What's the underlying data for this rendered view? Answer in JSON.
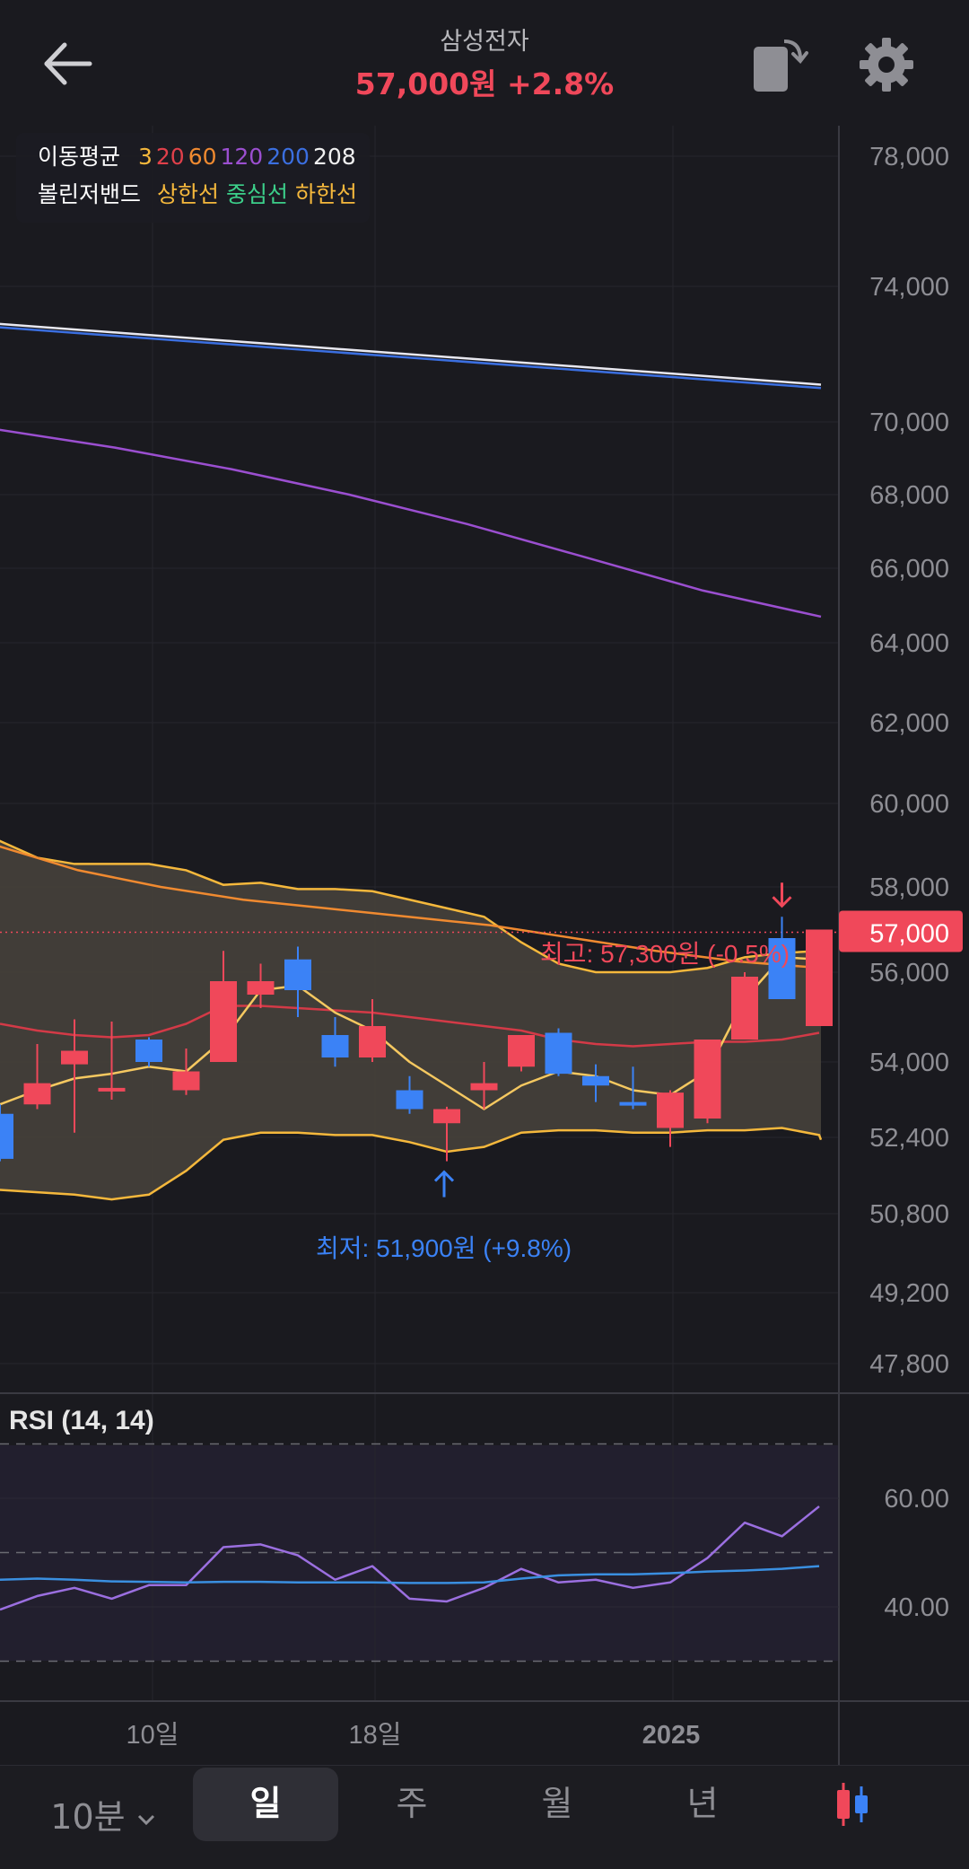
{
  "header": {
    "stock_name": "삼성전자",
    "price": "57,000원",
    "change": "+2.8%",
    "price_color": "#f0485a"
  },
  "legend": {
    "ma_label": "이동평균",
    "ma_periods": [
      {
        "label": "3",
        "color": "#f5b83c"
      },
      {
        "label": "20",
        "color": "#e0404a"
      },
      {
        "label": "60",
        "color": "#f08a30"
      },
      {
        "label": "120",
        "color": "#9b4fd0"
      },
      {
        "label": "200",
        "color": "#3b6fe0"
      },
      {
        "label": "208",
        "color": "#f0f0f0"
      }
    ],
    "bb_label": "볼린저밴드",
    "bb_items": [
      {
        "label": "상한선",
        "color": "#f5b83c"
      },
      {
        "label": "중심선",
        "color": "#3ccf8a"
      },
      {
        "label": "하한선",
        "color": "#f5b83c"
      }
    ]
  },
  "annotations": {
    "high": "최고: 57,300원 (-0.5%)",
    "low": "최저: 51,900원 (+9.8%)",
    "current_price_tag": "57,000"
  },
  "rsi": {
    "label": "RSI (14, 14)"
  },
  "bottom_bar": {
    "interval": "10분",
    "tabs": [
      "일",
      "주",
      "월",
      "년"
    ],
    "active_tab": "일"
  },
  "chart_data": [
    {
      "type": "candlestick",
      "up_color": "#f0485a",
      "down_color": "#3b82f6",
      "y_ticks": [
        78000,
        74000,
        70000,
        68000,
        66000,
        64000,
        62000,
        60000,
        58000,
        56000,
        54000,
        52400,
        50800,
        49200,
        47800
      ],
      "y_tick_labels": [
        "78,000",
        "74,000",
        "70,000",
        "68,000",
        "66,000",
        "64,000",
        "62,000",
        "60,000",
        "58,000",
        "56,000",
        "54,000",
        "52,400",
        "50,800",
        "49,200",
        "47,800"
      ],
      "x_tick_labels": [
        "10일",
        "18일",
        "2025"
      ],
      "candles": [
        {
          "o": 52900,
          "c": 51950,
          "h": 53100,
          "l": 51900
        },
        {
          "o": 53100,
          "c": 53550,
          "h": 54400,
          "l": 53000
        },
        {
          "o": 53950,
          "c": 54250,
          "h": 54950,
          "l": 52500
        },
        {
          "o": 53450,
          "c": 53450,
          "h": 54900,
          "l": 53200
        },
        {
          "o": 54500,
          "c": 54000,
          "h": 54550,
          "l": 53900
        },
        {
          "o": 53400,
          "c": 53800,
          "h": 54300,
          "l": 53300
        },
        {
          "o": 54000,
          "c": 55800,
          "h": 56500,
          "l": 54000
        },
        {
          "o": 55500,
          "c": 55800,
          "h": 56200,
          "l": 55200
        },
        {
          "o": 56300,
          "c": 55600,
          "h": 56600,
          "l": 55000
        },
        {
          "o": 54600,
          "c": 54100,
          "h": 55000,
          "l": 53900
        },
        {
          "o": 54100,
          "c": 54800,
          "h": 55400,
          "l": 54000
        },
        {
          "o": 53400,
          "c": 53000,
          "h": 53700,
          "l": 52900
        },
        {
          "o": 52700,
          "c": 53000,
          "h": 53050,
          "l": 51900
        },
        {
          "o": 53400,
          "c": 53550,
          "h": 54000,
          "l": 53000
        },
        {
          "o": 53900,
          "c": 54600,
          "h": 54600,
          "l": 53800
        },
        {
          "o": 54650,
          "c": 53750,
          "h": 54750,
          "l": 53700
        },
        {
          "o": 53700,
          "c": 53500,
          "h": 53950,
          "l": 53150
        },
        {
          "o": 53150,
          "c": 53100,
          "h": 53900,
          "l": 53000
        },
        {
          "o": 52600,
          "c": 53350,
          "h": 53400,
          "l": 52200
        },
        {
          "o": 52800,
          "c": 54500,
          "h": 54500,
          "l": 52700
        },
        {
          "o": 54500,
          "c": 55900,
          "h": 56000,
          "l": 54500
        },
        {
          "o": 56800,
          "c": 55400,
          "h": 57300,
          "l": 55400
        },
        {
          "o": 54800,
          "c": 57000,
          "h": 57000,
          "l": 54800
        }
      ],
      "ma_200": [
        72800,
        72500,
        72200,
        71900,
        71600,
        71300,
        71000
      ],
      "ma_208": [
        72900,
        72600,
        72300,
        72000,
        71700,
        71400,
        71100
      ],
      "ma_120": [
        69800,
        69300,
        68700,
        68000,
        67200,
        66300,
        65400,
        64700
      ],
      "ma_60": [
        59000,
        58400,
        58000,
        57700,
        57500,
        57300,
        57100,
        56800,
        56500,
        56250,
        56100
      ],
      "bb_upper": [
        59100,
        58700,
        58550,
        58550,
        58550,
        58400,
        58050,
        58100,
        57950,
        57950,
        57900,
        57700,
        57500,
        57300,
        56700,
        56200,
        56000,
        56000,
        56000,
        56100,
        56350,
        56450,
        56500
      ],
      "bb_lower": [
        51300,
        51250,
        51200,
        51100,
        51200,
        51700,
        52350,
        52500,
        52500,
        52450,
        52450,
        52300,
        52100,
        52200,
        52500,
        52550,
        52550,
        52500,
        52500,
        52550,
        52550,
        52600,
        52450
      ],
      "ma_20": [
        54850,
        54700,
        54600,
        54550,
        54600,
        54850,
        55250,
        55250,
        55200,
        55150,
        55100,
        55000,
        54900,
        54800,
        54700,
        54500,
        54400,
        54350,
        54400,
        54450,
        54450,
        54500,
        54650
      ],
      "ma_3": [
        53100,
        53400,
        53650,
        53750,
        53900,
        53800,
        54500,
        55600,
        55700,
        55100,
        54700,
        54000,
        53500,
        53000,
        53500,
        53800,
        53700,
        53400,
        53300,
        53800,
        55400,
        56350,
        56300
      ],
      "high_marker": {
        "value": 57300,
        "label": "최고: 57,300원 (-0.5%)"
      },
      "low_marker": {
        "value": 51900,
        "label": "최저: 51,900원 (+9.8%)"
      },
      "current_price": 57000
    },
    {
      "type": "line",
      "title": "RSI (14, 14)",
      "y_tick_labels": [
        "60.00",
        "40.00"
      ],
      "reference_lines": [
        70,
        50,
        30
      ],
      "series": [
        {
          "name": "RSI",
          "color": "#9b6fe0",
          "values": [
            39.5,
            42,
            43.5,
            41.5,
            44,
            44,
            51,
            51.5,
            49.5,
            45,
            47.5,
            41.5,
            41,
            43.5,
            47,
            44.5,
            45,
            43.5,
            44.5,
            49,
            55.5,
            53,
            58.5
          ]
        },
        {
          "name": "Signal",
          "color": "#3a8fe0",
          "values": [
            45,
            45.2,
            45,
            44.7,
            44.6,
            44.5,
            44.6,
            44.6,
            44.5,
            44.5,
            44.5,
            44.4,
            44.4,
            44.5,
            45.2,
            45.8,
            46,
            46,
            46.2,
            46.5,
            46.7,
            47,
            47.5
          ]
        }
      ]
    }
  ]
}
